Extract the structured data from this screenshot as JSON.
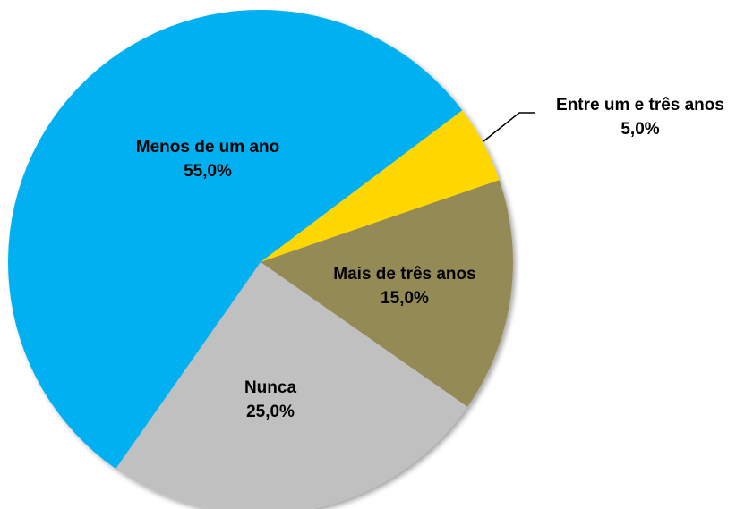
{
  "chart_data": {
    "type": "pie",
    "categories": [
      "Entre um e três anos",
      "Mais de três anos",
      "Nunca",
      "Menos de um ano"
    ],
    "values": [
      5,
      15,
      25,
      55
    ],
    "value_labels": [
      "5,0%",
      "15,0%",
      "25,0%",
      "55,0%"
    ],
    "colors": [
      "#ffd700",
      "#948a54",
      "#c0c0c0",
      "#00b0f0"
    ]
  }
}
